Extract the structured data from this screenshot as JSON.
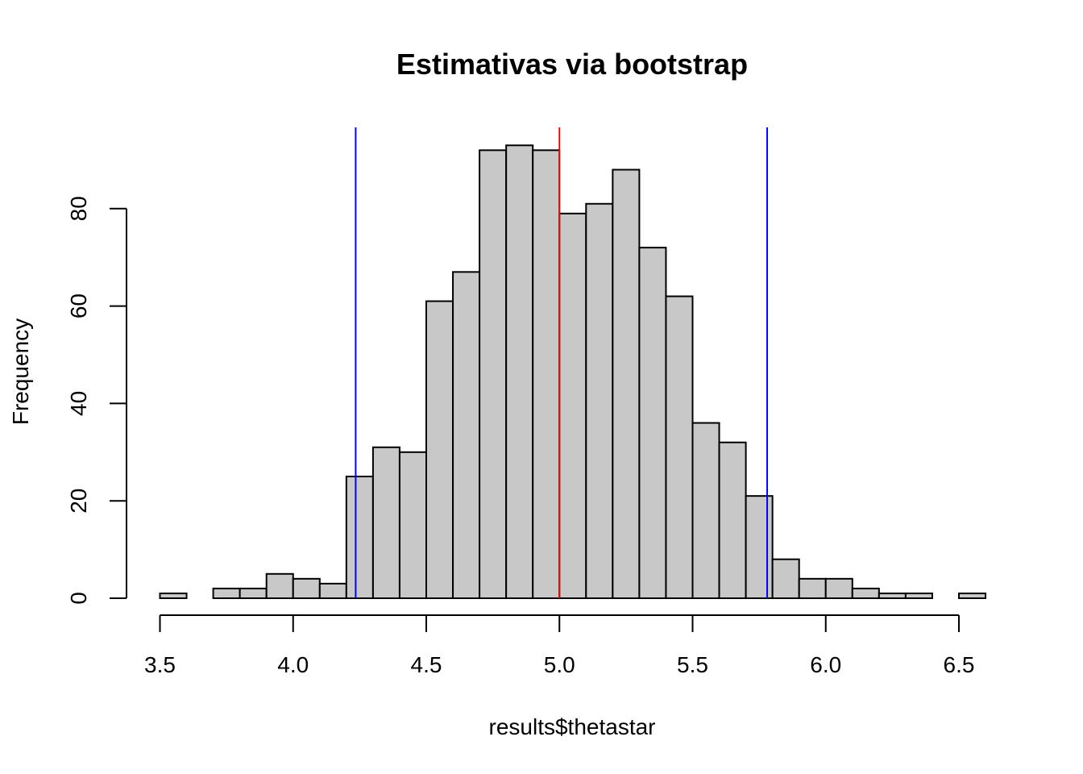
{
  "chart_data": {
    "type": "bar",
    "subtype": "histogram",
    "title": "Estimativas via bootstrap",
    "xlabel": "results$thetastar",
    "ylabel": "Frequency",
    "bin_width": 0.1,
    "bin_starts": [
      3.5,
      3.6,
      3.7,
      3.8,
      3.9,
      4.0,
      4.1,
      4.2,
      4.3,
      4.4,
      4.5,
      4.6,
      4.7,
      4.8,
      4.9,
      5.0,
      5.1,
      5.2,
      5.3,
      5.4,
      5.5,
      5.6,
      5.7,
      5.8,
      5.9,
      6.0,
      6.1,
      6.2,
      6.3,
      6.4,
      6.5
    ],
    "values": [
      1,
      0,
      2,
      2,
      5,
      4,
      3,
      25,
      31,
      30,
      61,
      67,
      92,
      93,
      92,
      79,
      81,
      88,
      72,
      62,
      36,
      32,
      21,
      8,
      4,
      4,
      2,
      1,
      1,
      0,
      1
    ],
    "xlim": [
      3.5,
      6.6
    ],
    "ylim": [
      0,
      96
    ],
    "x_ticks": [
      3.5,
      4.0,
      4.5,
      5.0,
      5.5,
      6.0,
      6.5
    ],
    "x_tick_labels": [
      "3.5",
      "4.0",
      "4.5",
      "5.0",
      "5.5",
      "6.0",
      "6.5"
    ],
    "y_ticks": [
      0,
      20,
      40,
      60,
      80
    ],
    "y_tick_labels": [
      "0",
      "20",
      "40",
      "60",
      "80"
    ],
    "vertical_lines": [
      {
        "x": 4.235,
        "color": "#0000ff"
      },
      {
        "x": 5.0,
        "color": "#ff0000"
      },
      {
        "x": 5.78,
        "color": "#0000ff"
      }
    ],
    "bar_fill": "#c8c8c8",
    "bar_stroke": "#000000",
    "grid": false,
    "legend": "none"
  }
}
